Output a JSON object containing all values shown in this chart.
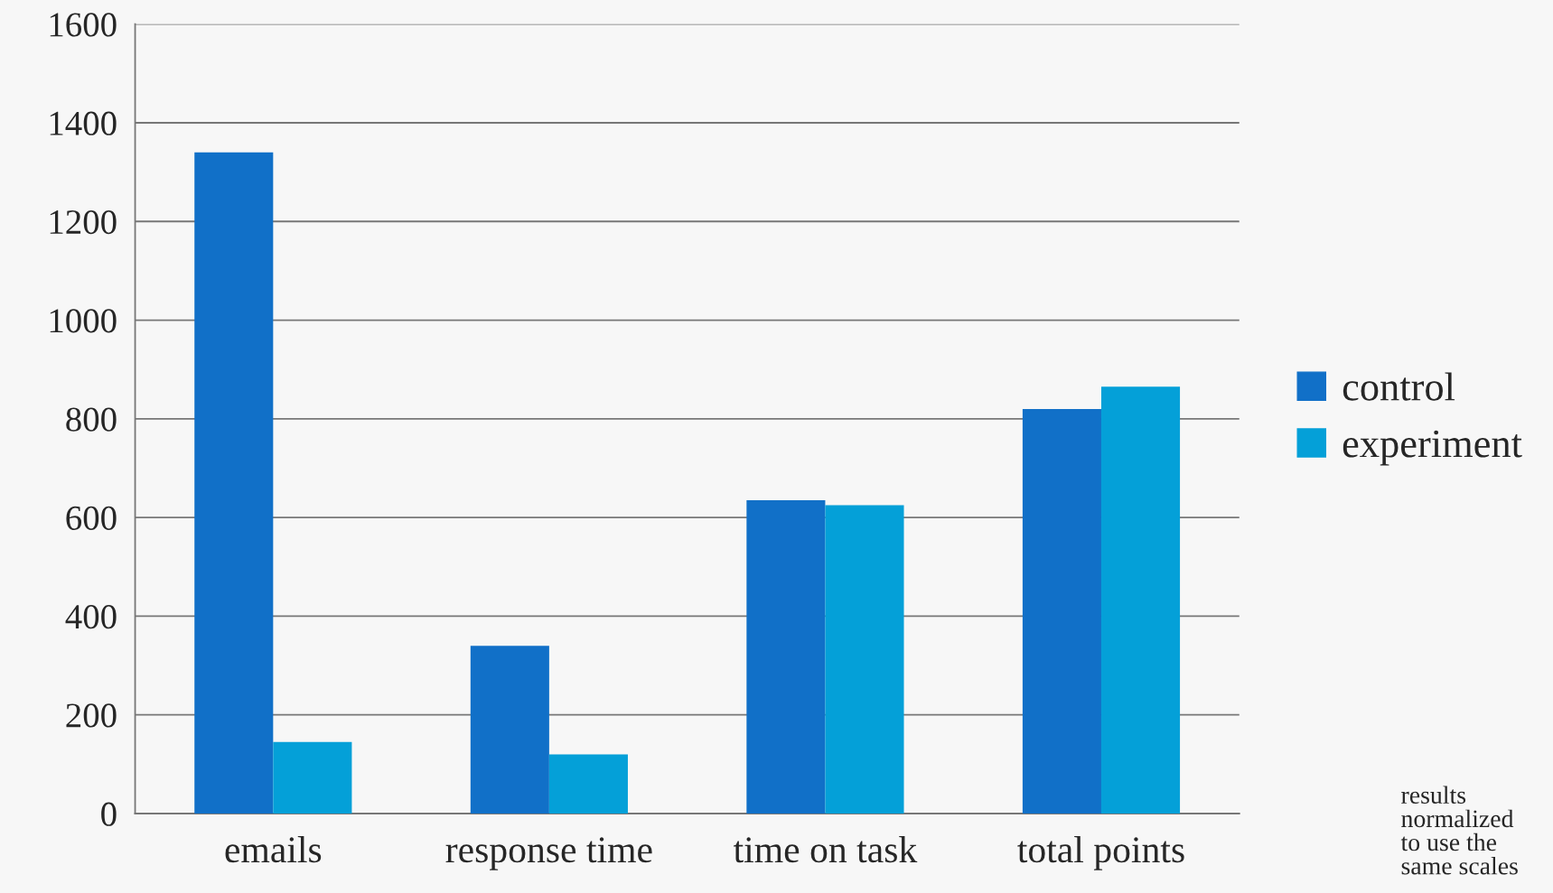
{
  "chart_data": {
    "type": "bar",
    "categories": [
      "emails",
      "response time",
      "time on task",
      "total points"
    ],
    "series": [
      {
        "name": "control",
        "color": "#1170c8",
        "values": [
          1340,
          340,
          635,
          820
        ]
      },
      {
        "name": "experiment",
        "color": "#04a0d8",
        "values": [
          145,
          120,
          625,
          865
        ]
      }
    ],
    "ylim": [
      0,
      1600
    ],
    "yticks": [
      0,
      200,
      400,
      600,
      800,
      1000,
      1200,
      1400,
      1600
    ],
    "grid": "y",
    "legend": "right",
    "annotations": [
      "results\nnormalized\nto use the\nsame scales"
    ]
  }
}
